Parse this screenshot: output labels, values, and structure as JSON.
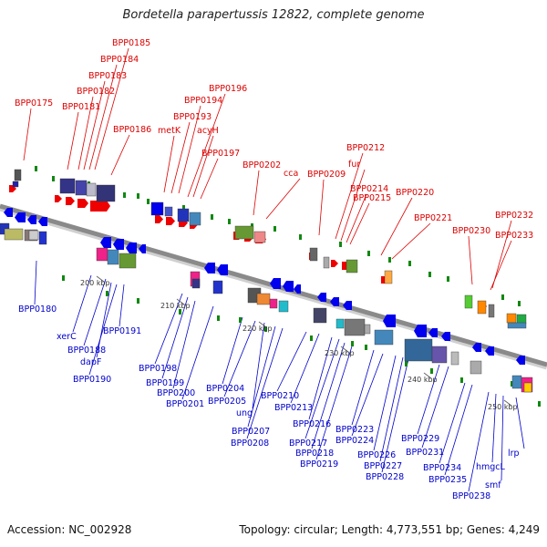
{
  "title": "Bordetella parapertussis 12822, complete genome",
  "footer": {
    "accession": "Accession: NC_002928",
    "summary": "Topology: circular; Length: 4,773,551 bp; Genes: 4,249"
  },
  "ticks": [
    "200 kbp",
    "210 kbp",
    "220 kbp",
    "230 kbp",
    "240 kbp",
    "250 kbp"
  ],
  "labels_upper": [
    "BPP0175",
    "BPP0181",
    "BPP0182",
    "BPP0183",
    "BPP0184",
    "BPP0185",
    "BPP0186",
    "metK",
    "BPP0193",
    "BPP0194",
    "BPP0196",
    "acyH",
    "BPP0197",
    "BPP0202",
    "cca",
    "BPP0209",
    "BPP0212",
    "fur",
    "BPP0214",
    "BPP0215",
    "BPP0220",
    "BPP0221",
    "BPP0230",
    "BPP0232",
    "BPP0233"
  ],
  "labels_lower": [
    "BPP0180",
    "xerC",
    "BPP0188",
    "dapF",
    "BPP0190",
    "BPP0191",
    "BPP0198",
    "BPP0199",
    "BPP0200",
    "BPP0201",
    "BPP0204",
    "BPP0205",
    "ung",
    "BPP0207",
    "BPP0208",
    "BPP0210",
    "BPP0213",
    "BPP0216",
    "BPP0217",
    "BPP0218",
    "BPP0219",
    "BPP0223",
    "BPP0224",
    "BPP0226",
    "BPP0227",
    "BPP0228",
    "BPP0229",
    "BPP0231",
    "BPP0234",
    "BPP0235",
    "BPP0238",
    "hmgcL",
    "smf",
    "lrp"
  ]
}
